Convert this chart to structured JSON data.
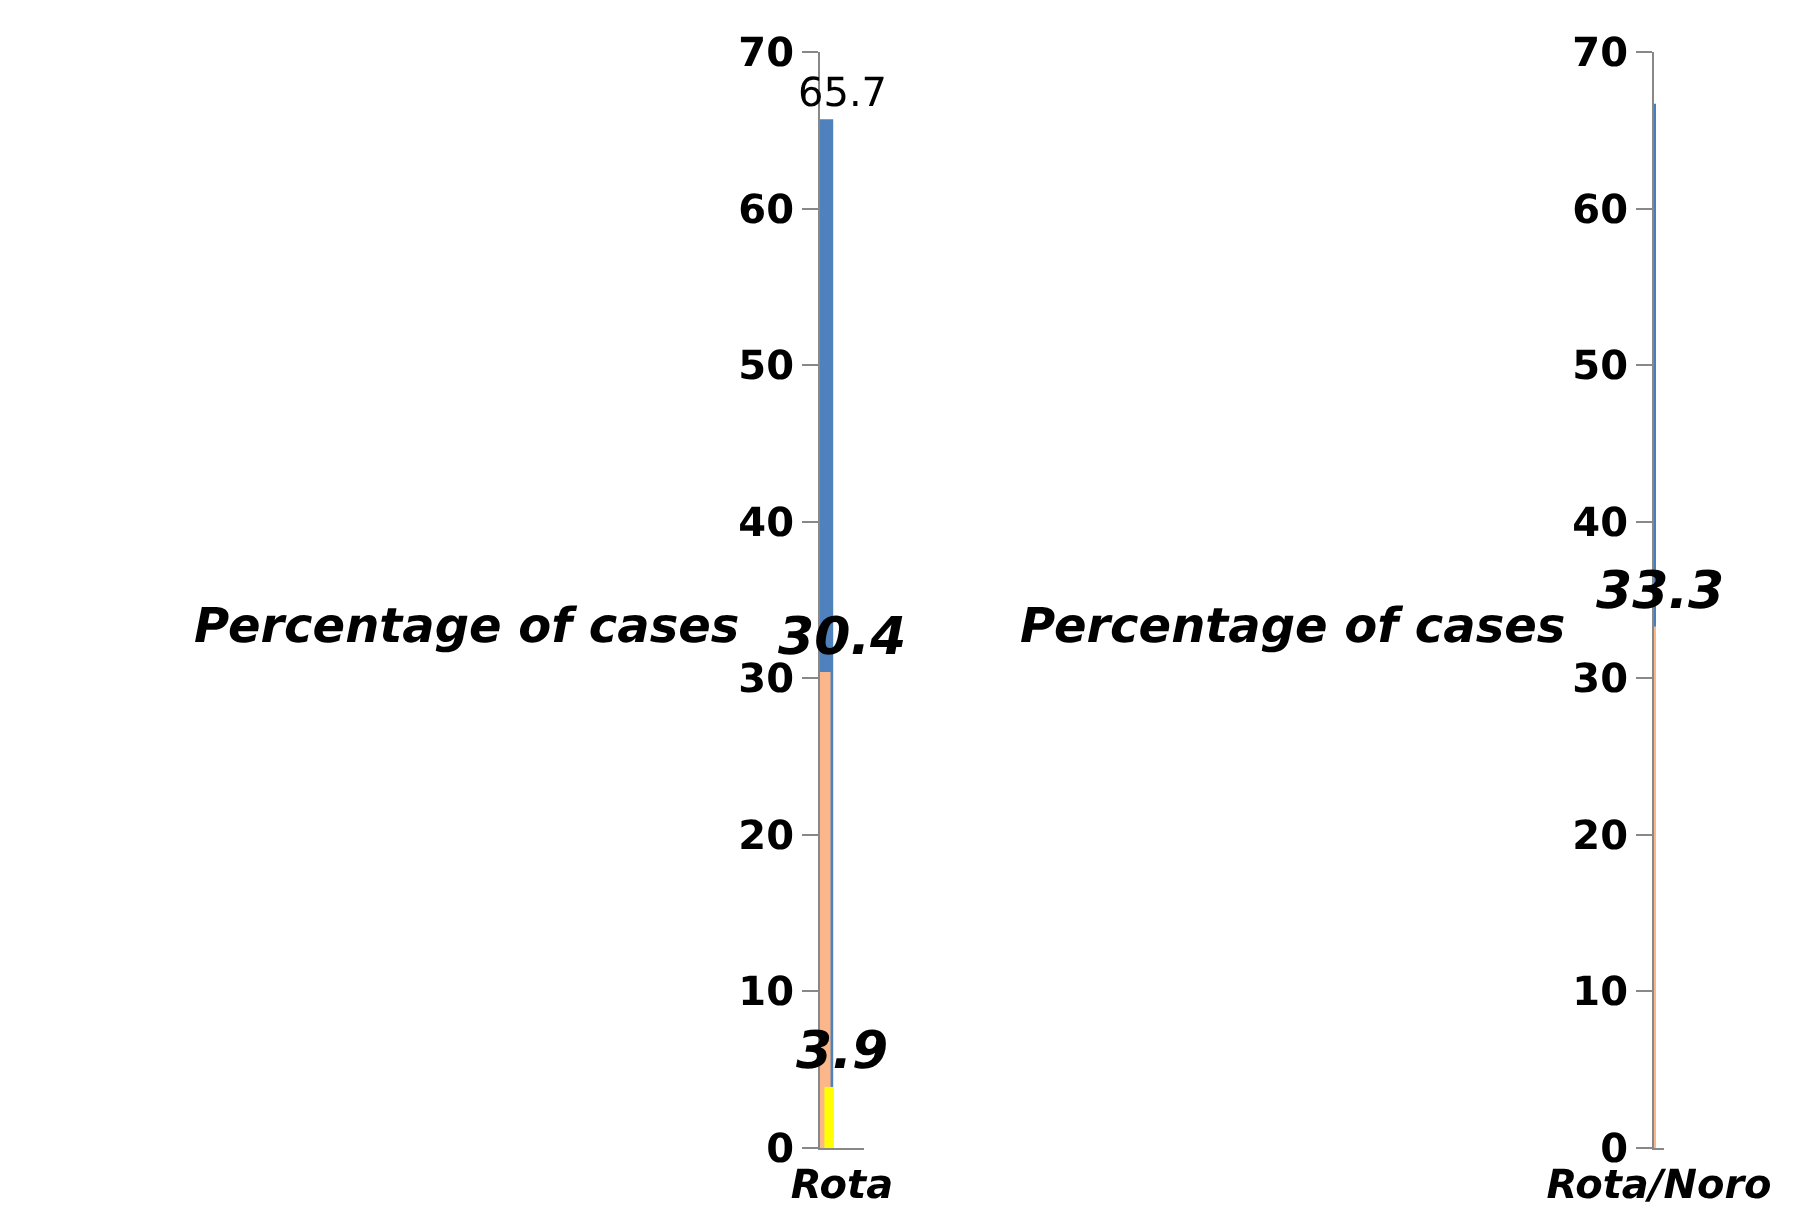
{
  "chart_data": [
    {
      "type": "bar",
      "ylabel": "Percentage of cases",
      "categories": [
        "Rota"
      ],
      "ylim": [
        0,
        70
      ],
      "yticks": [
        0,
        10,
        20,
        30,
        40,
        50,
        60,
        70
      ],
      "grid": false,
      "data_labels": true,
      "series": [
        {
          "color": "#4f81bd",
          "values": [
            65.7
          ]
        },
        {
          "color": "#fbb78a",
          "values": [
            30.4
          ]
        },
        {
          "color": "#ffff00",
          "values": [
            3.9
          ]
        }
      ]
    },
    {
      "type": "bar",
      "ylabel": "Percentage of cases",
      "categories": [
        "Rota/Noro"
      ],
      "ylim": [
        0,
        70
      ],
      "yticks": [
        0,
        10,
        20,
        30,
        40,
        50,
        60,
        70
      ],
      "grid": false,
      "series": [
        {
          "color": "#4a7ebb",
          "values": [
            66.7
          ],
          "value_labels": [
            null
          ]
        },
        {
          "color": "#fbb78a",
          "values": [
            33.3
          ],
          "value_labels": [
            "33.3"
          ]
        }
      ]
    }
  ]
}
